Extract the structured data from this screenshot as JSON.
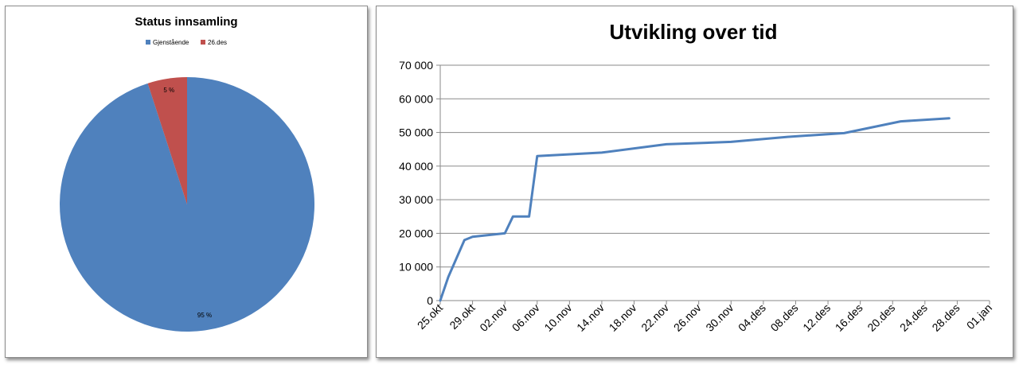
{
  "chart_data": [
    {
      "type": "pie",
      "title": "Status innsamling",
      "legend": [
        "Gjenstående",
        "26.des"
      ],
      "legend_placement": "top",
      "slices": [
        {
          "name": "Gjenstående",
          "value": 95,
          "label": "95 %",
          "color": "#4f81bd"
        },
        {
          "name": "26.des",
          "value": 5,
          "label": "5 %",
          "color": "#c0504d"
        }
      ]
    },
    {
      "type": "line",
      "title": "Utvikling over tid",
      "xlabel": "",
      "ylabel": "",
      "ylim": [
        0,
        70000
      ],
      "yticks": [
        "0",
        "10 000",
        "20 000",
        "30 000",
        "40 000",
        "50 000",
        "60 000",
        "70 000"
      ],
      "xlim": [
        "2010-10-25",
        "2011-01-01"
      ],
      "xticks": [
        "25.okt",
        "29.okt",
        "02.nov",
        "06.nov",
        "10.nov",
        "14.nov",
        "18.nov",
        "22.nov",
        "26.nov",
        "30.nov",
        "04.des",
        "08.des",
        "12.des",
        "16.des",
        "20.des",
        "24.des",
        "28.des",
        "01.jan"
      ],
      "grid": true,
      "legend": false,
      "series": [
        {
          "color": "#4f81bd",
          "points": [
            {
              "x": "2010-10-25",
              "y": 0
            },
            {
              "x": "2010-10-26",
              "y": 7000
            },
            {
              "x": "2010-10-28",
              "y": 18000
            },
            {
              "x": "2010-10-29",
              "y": 19000
            },
            {
              "x": "2010-11-02",
              "y": 20000
            },
            {
              "x": "2010-11-03",
              "y": 25000
            },
            {
              "x": "2010-11-05",
              "y": 25000
            },
            {
              "x": "2010-11-06",
              "y": 43000
            },
            {
              "x": "2010-11-14",
              "y": 44000
            },
            {
              "x": "2010-11-22",
              "y": 46500
            },
            {
              "x": "2010-11-30",
              "y": 47200
            },
            {
              "x": "2010-12-07",
              "y": 48700
            },
            {
              "x": "2010-12-14",
              "y": 49800
            },
            {
              "x": "2010-12-21",
              "y": 53300
            },
            {
              "x": "2010-12-27",
              "y": 54200
            }
          ]
        }
      ]
    }
  ]
}
